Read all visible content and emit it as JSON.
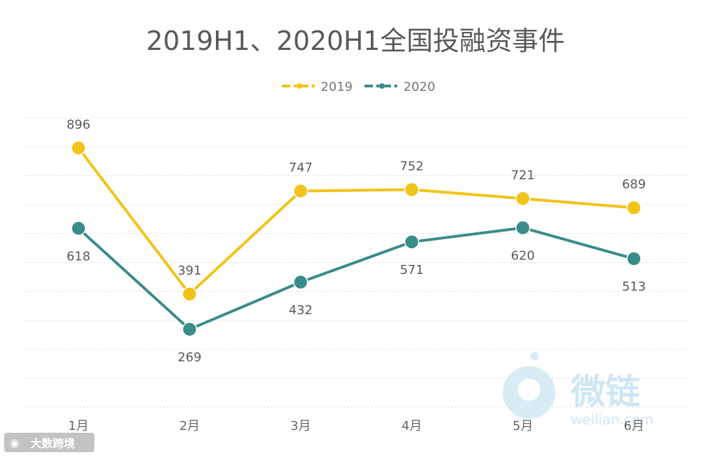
{
  "chart_data": {
    "type": "line",
    "title": "2019H1、2020H1全国投融资事件",
    "categories": [
      "1月",
      "2月",
      "3月",
      "4月",
      "5月",
      "6月"
    ],
    "series": [
      {
        "name": "2019",
        "values": [
          896,
          391,
          747,
          752,
          721,
          689
        ],
        "color": "#f2c318"
      },
      {
        "name": "2020",
        "values": [
          618,
          269,
          432,
          571,
          620,
          513
        ],
        "color": "#3a8c8a"
      }
    ],
    "ylim": [
      0,
      1000
    ],
    "grid": true,
    "legend": "top-center",
    "xlabel": "",
    "ylabel": ""
  },
  "watermark": {
    "text": "微链",
    "sub": "weilian.com",
    "color": "#cfe6f3"
  },
  "source_mark": {
    "text": "大数跨境"
  }
}
